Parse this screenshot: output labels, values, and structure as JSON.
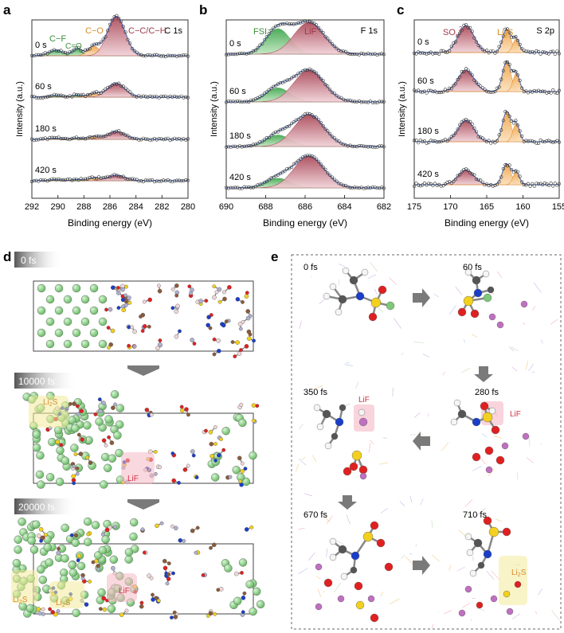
{
  "panels": {
    "a": {
      "letter": "a",
      "title": "C 1s",
      "xlabel": "Binding energy (eV)",
      "ylabel": "Intensity (a.u.)",
      "ticks": [
        "292",
        "290",
        "288",
        "286",
        "284",
        "282",
        "280"
      ],
      "rows": [
        "0 s",
        "60 s",
        "180 s",
        "420 s"
      ],
      "labels": {
        "cf": "C−F",
        "co2": "C=O",
        "co": "C−O",
        "cc": "C−C/C−H"
      }
    },
    "b": {
      "letter": "b",
      "title": "F 1s",
      "xlabel": "Binding energy (eV)",
      "ylabel": "Intensity (a.u.)",
      "ticks": [
        "690",
        "688",
        "686",
        "684",
        "682"
      ],
      "rows": [
        "0 s",
        "60 s",
        "180 s",
        "420 s"
      ],
      "labels": {
        "fsi": "FSI⁻",
        "lif": "LiF"
      }
    },
    "c": {
      "letter": "c",
      "title": "S 2p",
      "xlabel": "Binding energy (eV)",
      "ylabel": "Intensity (a.u.)",
      "ticks": [
        "175",
        "170",
        "165",
        "160",
        "155"
      ],
      "rows": [
        "0 s",
        "60 s",
        "180 s",
        "420 s"
      ],
      "labels": {
        "sox": "SO",
        "sox_sub": "x",
        "sox_sup": "2−",
        "li2s": "Li",
        "li2s_sub": "2",
        "li2s_end": "S"
      }
    },
    "d": {
      "letter": "d",
      "times": [
        "0 fs",
        "10000 fs",
        "20000 fs"
      ],
      "labels": {
        "lif": "LiF",
        "li2s": "Li",
        "li2s_sub": "2",
        "li2s_end": "S"
      }
    },
    "e": {
      "letter": "e",
      "times": [
        "0 fs",
        "60 fs",
        "280 fs",
        "350 fs",
        "670 fs",
        "710 fs"
      ],
      "labels": {
        "lif": "LiF",
        "li2s": "Li",
        "li2s_sub": "2",
        "li2s_end": "S"
      }
    }
  },
  "colors": {
    "green_peak": "#4caf50",
    "orange_peak": "#f0a040",
    "red_peak": "#b04a5a",
    "lithium": "#7ec87a",
    "sulfur": "#f2d01e",
    "oxygen": "#e02020",
    "nitrogen": "#1a3ec8",
    "carbon": "#8a5a3a",
    "hydrogen": "#f0d8d8",
    "li_ion": "#c070c0",
    "arrow": "#7a7a7a"
  }
}
